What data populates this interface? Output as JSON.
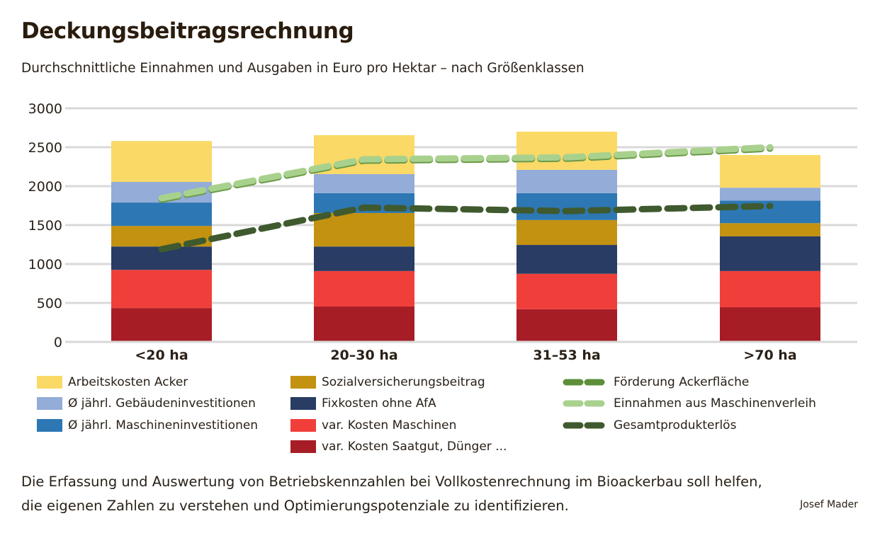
{
  "title": "Deckungsbeitragsrechnung",
  "subtitle": "Durchschnittliche Einnahmen und Ausgaben in Euro pro Hektar – nach Größenklassen",
  "footer": {
    "lines": [
      "Die Erfassung und Auswertung von Betriebskennzahlen bei Vollkostenrechnung im Bioackerbau soll helfen,",
      "die eigenen Zahlen zu verstehen und Optimierungspotenziale zu identifizieren."
    ],
    "credit": "Josef Mader"
  },
  "chart_data": {
    "type": "bar",
    "stacked": true,
    "title": "Deckungsbeitragsrechnung",
    "ylim": [
      0,
      3000
    ],
    "yticks": [
      0,
      500,
      1000,
      1500,
      2000,
      2500,
      3000
    ],
    "grid": true,
    "legend_position": "bottom",
    "categories": [
      "<20 ha",
      "20–30 ha",
      "31–53 ha",
      ">70 ha"
    ],
    "series": [
      {
        "name": "var. Kosten Saatgut, Dünger ...",
        "color": "#a61d26",
        "values": [
          435,
          455,
          420,
          445
        ]
      },
      {
        "name": "var. Kosten Maschinen",
        "color": "#f03f3a",
        "values": [
          490,
          455,
          455,
          465
        ]
      },
      {
        "name": "Fixkosten ohne AfA",
        "color": "#283c64",
        "values": [
          300,
          315,
          370,
          445
        ]
      },
      {
        "name": "Sozialversicherungsbeitrag",
        "color": "#c39211",
        "values": [
          265,
          430,
          320,
          170
        ]
      },
      {
        "name": "Ø jährl. Maschineninvestitionen",
        "color": "#2d77b4",
        "values": [
          300,
          255,
          345,
          290
        ]
      },
      {
        "name": "Ø jährl. Gebäudeninvestitionen",
        "color": "#93acd8",
        "values": [
          265,
          245,
          300,
          165
        ]
      },
      {
        "name": "Arbeitskosten Acker",
        "color": "#fad966",
        "values": [
          525,
          500,
          490,
          420
        ]
      }
    ],
    "lines": [
      {
        "name": "Förderung Ackerfläche",
        "color": "#5d8f3a",
        "values": [
          1835,
          2335,
          2360,
          2490
        ]
      },
      {
        "name": "Einnahmen aus Maschinenverleih",
        "color": "#a9d18e",
        "values": [
          1845,
          2345,
          2370,
          2500
        ]
      },
      {
        "name": "Gesamtprodukterlös",
        "color": "#3f5a2e",
        "values": [
          1190,
          1725,
          1680,
          1745
        ]
      }
    ],
    "legend": {
      "col1": [
        "Arbeitskosten Acker",
        "Ø jährl. Gebäudeninvestitionen",
        "Ø jährl. Maschineninvestitionen"
      ],
      "col2": [
        "Sozialversicherungsbeitrag",
        "Fixkosten ohne AfA",
        "var. Kosten Maschinen",
        "var. Kosten Saatgut, Dünger ..."
      ],
      "col3": [
        "Förderung Ackerfläche",
        "Einnahmen aus Maschinenverleih",
        "Gesamtprodukterlös"
      ]
    }
  }
}
